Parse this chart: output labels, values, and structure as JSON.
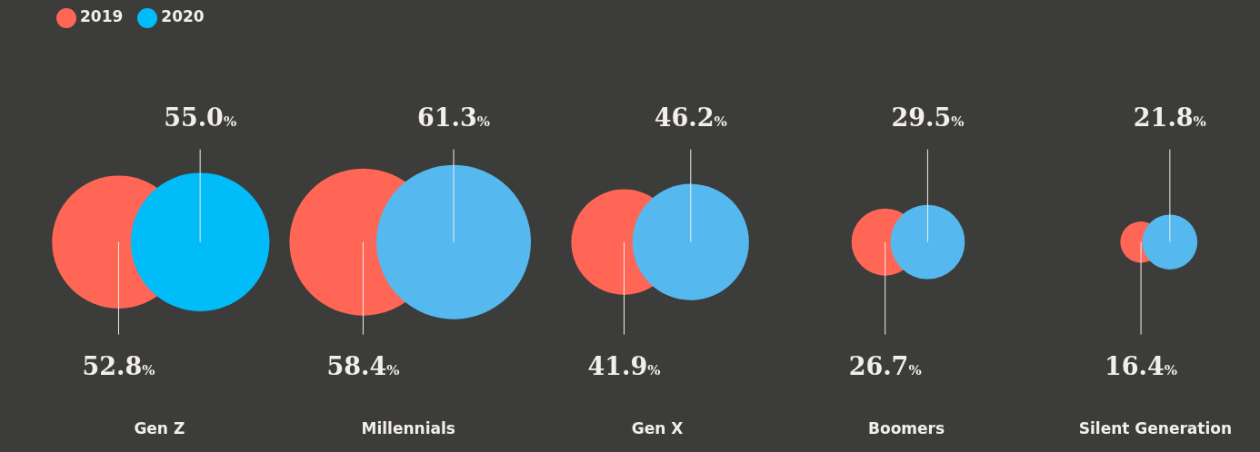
{
  "chart_data": {
    "type": "other",
    "categories": [
      "Gen Z",
      "Millennials",
      "Gen X",
      "Boomers",
      "Silent Generation"
    ],
    "series": [
      {
        "name": "2019",
        "color": "#ff6655",
        "colors": [
          "#ff6655",
          "#ff6655",
          "#ff6655",
          "#ff6655",
          "#ff6655"
        ],
        "values": [
          52.8,
          58.4,
          41.9,
          26.7,
          16.4
        ],
        "value_labels": [
          "52.8%",
          "58.4%",
          "41.9%",
          "26.7%",
          "16.4%"
        ]
      },
      {
        "name": "2020",
        "color": "#00bcf9",
        "colors": [
          "#00bcf9",
          "#55b9f0",
          "#55b9f0",
          "#55b9f0",
          "#55b9f0"
        ],
        "values": [
          55.0,
          61.3,
          46.2,
          29.5,
          21.8
        ],
        "value_labels": [
          "55.0%",
          "61.3%",
          "46.2%",
          "29.5%",
          "21.8%"
        ]
      }
    ],
    "legend": "top left"
  }
}
